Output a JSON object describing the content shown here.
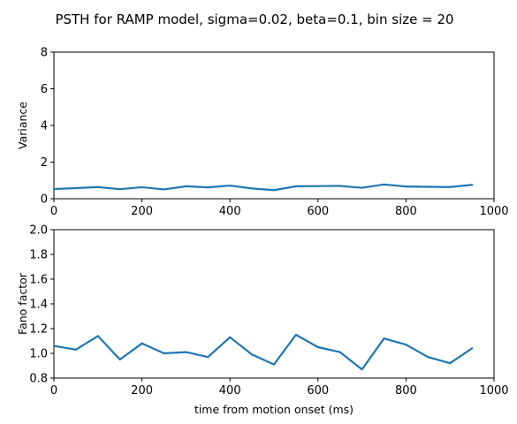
{
  "title": "PSTH for RAMP model, sigma=0.02, beta=0.1, bin size = 20",
  "colors": {
    "line": "#1f77b4",
    "axes": "#000000"
  },
  "chart_data": [
    {
      "type": "line",
      "xlabel": "",
      "ylabel": "Variance",
      "xlim": [
        0,
        1000
      ],
      "ylim": [
        0,
        8
      ],
      "xticks": [
        0,
        200,
        400,
        600,
        800,
        1000
      ],
      "yticks": [
        0,
        2,
        4,
        6,
        8
      ],
      "grid": false,
      "x": [
        0,
        50,
        100,
        150,
        200,
        250,
        300,
        350,
        400,
        450,
        500,
        550,
        600,
        650,
        700,
        750,
        800,
        850,
        900,
        950
      ],
      "values": [
        0.53,
        0.58,
        0.64,
        0.52,
        0.63,
        0.51,
        0.68,
        0.62,
        0.72,
        0.56,
        0.47,
        0.68,
        0.69,
        0.7,
        0.6,
        0.78,
        0.67,
        0.65,
        0.64,
        0.76
      ]
    },
    {
      "type": "line",
      "xlabel": "time from motion onset (ms)",
      "ylabel": "Fano factor",
      "xlim": [
        0,
        1000
      ],
      "ylim": [
        0.8,
        2.0
      ],
      "xticks": [
        0,
        200,
        400,
        600,
        800,
        1000
      ],
      "yticks": [
        "0.8",
        "1.0",
        "1.2",
        "1.4",
        "1.6",
        "1.8",
        "2.0"
      ],
      "grid": false,
      "x": [
        0,
        50,
        100,
        150,
        200,
        250,
        300,
        350,
        400,
        450,
        500,
        550,
        600,
        650,
        700,
        750,
        800,
        850,
        900,
        950
      ],
      "values": [
        1.06,
        1.03,
        1.14,
        0.95,
        1.08,
        1.0,
        1.01,
        0.97,
        1.13,
        0.99,
        0.91,
        1.15,
        1.05,
        1.01,
        0.87,
        1.12,
        1.07,
        0.97,
        0.92,
        1.04
      ]
    }
  ]
}
